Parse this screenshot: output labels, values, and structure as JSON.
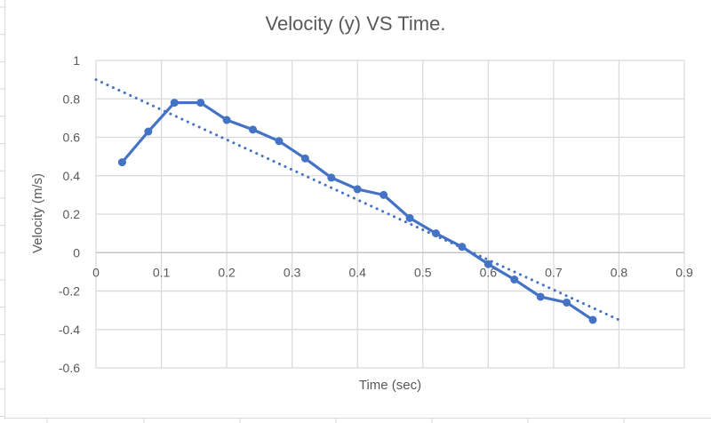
{
  "chart_data": {
    "type": "line",
    "title": "Velocity (y) VS Time.",
    "xlabel": "Time (sec)",
    "ylabel": "Velocity (m/s)",
    "xlim": [
      0,
      0.9
    ],
    "ylim": [
      -0.6,
      1
    ],
    "x_ticks": [
      "0",
      "0.1",
      "0.2",
      "0.3",
      "0.4",
      "0.5",
      "0.6",
      "0.7",
      "0.8",
      "0.9"
    ],
    "x_tick_values": [
      0,
      0.1,
      0.2,
      0.3,
      0.4,
      0.5,
      0.6,
      0.7,
      0.8,
      0.9
    ],
    "y_ticks": [
      "1",
      "0.8",
      "0.6",
      "0.4",
      "0.2",
      "0",
      "-0.2",
      "-0.4",
      "-0.6"
    ],
    "y_tick_values": [
      1,
      0.8,
      0.6,
      0.4,
      0.2,
      0,
      -0.2,
      -0.4,
      -0.6
    ],
    "grid": true,
    "legend": "none",
    "series": [
      {
        "name": "Velocity",
        "color": "#4472C4",
        "markers": true,
        "x": [
          0.04,
          0.08,
          0.12,
          0.16,
          0.2,
          0.24,
          0.28,
          0.32,
          0.36,
          0.4,
          0.44,
          0.48,
          0.52,
          0.56,
          0.6,
          0.64,
          0.68,
          0.72,
          0.76
        ],
        "y": [
          0.47,
          0.63,
          0.78,
          0.78,
          0.69,
          0.64,
          0.58,
          0.49,
          0.39,
          0.33,
          0.3,
          0.18,
          0.1,
          0.03,
          -0.06,
          -0.14,
          -0.23,
          -0.26,
          -0.35
        ]
      }
    ],
    "trendline": {
      "type": "linear",
      "style": "dotted",
      "color": "#4472C4",
      "x": [
        0,
        0.8
      ],
      "y": [
        0.9,
        -0.35
      ]
    }
  }
}
